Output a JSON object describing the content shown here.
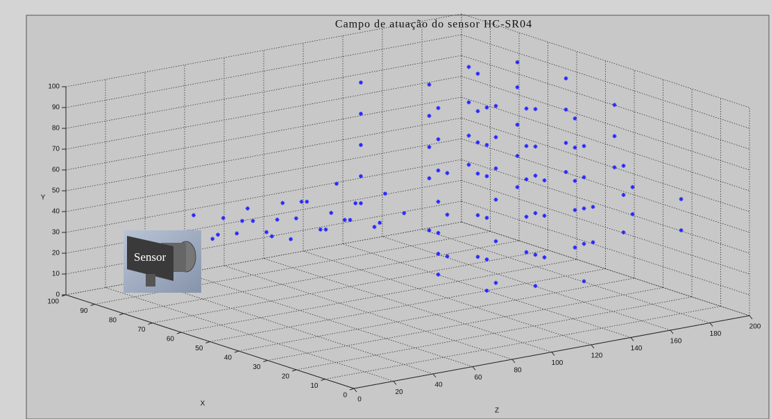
{
  "chart_data": {
    "type": "scatter3d",
    "title": "Campo de atuação do sensor HC-SR04",
    "xlabel": "X",
    "ylabel": "Y",
    "zlabel": "Z",
    "annotation": "Sensor",
    "color": "#2727ff",
    "grid": true,
    "xlim": [
      0,
      100
    ],
    "ylim": [
      0,
      100
    ],
    "zlim": [
      0,
      200
    ],
    "xticks": [
      0,
      10,
      20,
      30,
      40,
      50,
      60,
      70,
      80,
      90,
      100
    ],
    "yticks": [
      0,
      10,
      20,
      30,
      40,
      50,
      60,
      70,
      80,
      90,
      100
    ],
    "zticks": [
      0,
      20,
      40,
      60,
      80,
      100,
      120,
      140,
      160,
      180,
      200
    ],
    "x": [
      85,
      80,
      75,
      85,
      80,
      75,
      70,
      85,
      80,
      75,
      70,
      85,
      80,
      75,
      70,
      85,
      80,
      75,
      70,
      85,
      80,
      75,
      90,
      90,
      90,
      90,
      65,
      65,
      65,
      60,
      60,
      60,
      60,
      60,
      60,
      60,
      40,
      40,
      40,
      40,
      40,
      40,
      70,
      70,
      70,
      70,
      70,
      50,
      50,
      50,
      50,
      50,
      50,
      30,
      30,
      30,
      60,
      60,
      60,
      60,
      60,
      60,
      40,
      40,
      40,
      40,
      40,
      40,
      20,
      20,
      70,
      70,
      70,
      70,
      50,
      50,
      50,
      50,
      50,
      30,
      30,
      30,
      30,
      30,
      60,
      60,
      60,
      60,
      60,
      40,
      40,
      40,
      40,
      40,
      20,
      20,
      50,
      50,
      50,
      50,
      30,
      30,
      30,
      10,
      10,
      80,
      80,
      80,
      80,
      50,
      50,
      50,
      40,
      40,
      40
    ],
    "z": [
      40,
      45,
      50,
      55,
      60,
      65,
      70,
      70,
      75,
      80,
      85,
      85,
      90,
      95,
      100,
      100,
      105,
      110,
      115,
      115,
      120,
      125,
      50,
      65,
      80,
      95,
      90,
      105,
      120,
      130,
      130,
      130,
      130,
      130,
      130,
      130,
      130,
      130,
      130,
      130,
      130,
      130,
      140,
      140,
      140,
      140,
      140,
      140,
      140,
      140,
      140,
      140,
      140,
      140,
      140,
      140,
      150,
      150,
      150,
      150,
      150,
      150,
      150,
      150,
      150,
      150,
      150,
      150,
      150,
      150,
      160,
      160,
      160,
      160,
      160,
      160,
      160,
      160,
      160,
      160,
      160,
      160,
      160,
      160,
      170,
      170,
      170,
      170,
      170,
      170,
      170,
      170,
      170,
      170,
      170,
      170,
      180,
      180,
      180,
      180,
      180,
      180,
      180,
      180,
      180,
      120,
      120,
      120,
      120,
      120,
      120,
      120,
      190,
      190,
      190
    ],
    "y": [
      30,
      28,
      32,
      26,
      34,
      30,
      28,
      36,
      24,
      34,
      30,
      28,
      38,
      26,
      32,
      34,
      30,
      36,
      28,
      40,
      32,
      38,
      34,
      30,
      26,
      32,
      36,
      30,
      34,
      5,
      15,
      25,
      40,
      55,
      70,
      85,
      10,
      30,
      50,
      65,
      80,
      95,
      20,
      45,
      60,
      75,
      90,
      0,
      15,
      35,
      55,
      70,
      88,
      25,
      45,
      62,
      10,
      30,
      50,
      65,
      80,
      98,
      5,
      20,
      40,
      58,
      72,
      90,
      35,
      52,
      48,
      62,
      78,
      95,
      15,
      32,
      50,
      66,
      84,
      10,
      28,
      45,
      60,
      75,
      40,
      55,
      70,
      88,
      100,
      20,
      38,
      52,
      68,
      82,
      45,
      58,
      50,
      64,
      80,
      95,
      30,
      48,
      62,
      40,
      55,
      45,
      60,
      75,
      90,
      20,
      40,
      60,
      55,
      70,
      85
    ]
  }
}
